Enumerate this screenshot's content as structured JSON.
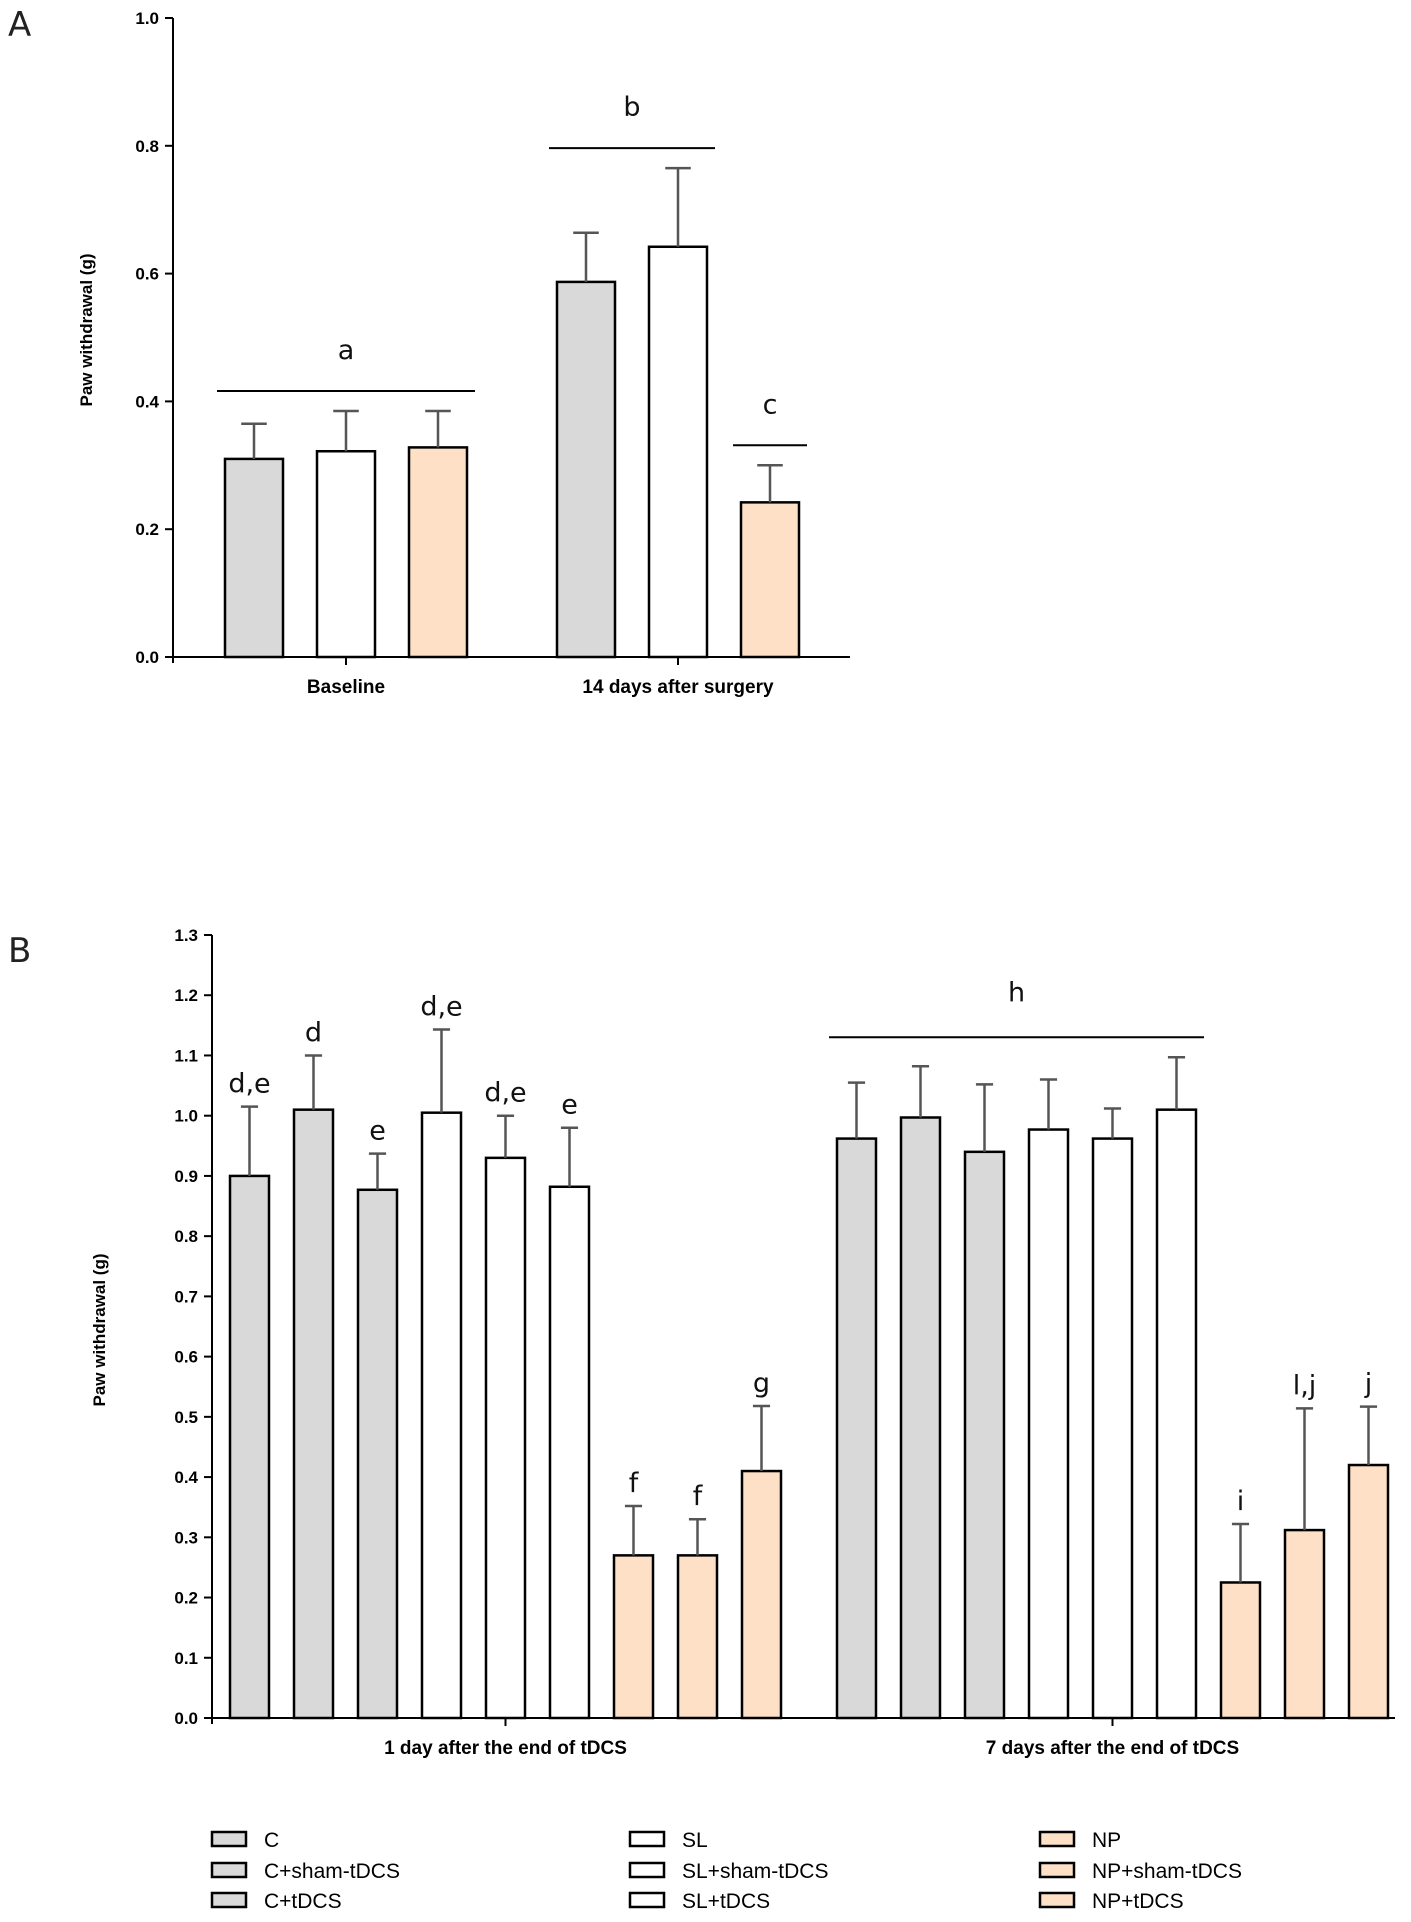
{
  "colors": {
    "C": "#d9d9d9",
    "SL": "#ffffff",
    "NP": "#fde0c5",
    "stroke": "#000000"
  },
  "chart_data": [
    {
      "panel": "A",
      "type": "bar",
      "ylabel": "Paw withdrawal (g)",
      "ylim": [
        0,
        1.0
      ],
      "yticks": [
        "0.0",
        "0.2",
        "0.4",
        "0.6",
        "0.8",
        "1.0"
      ],
      "groups": [
        {
          "label": "Baseline",
          "bars": [
            {
              "series": "C",
              "value": 0.31,
              "err": 0.055
            },
            {
              "series": "SL",
              "value": 0.322,
              "err": 0.063
            },
            {
              "series": "NP",
              "value": 0.328,
              "err": 0.057
            }
          ],
          "annotations": [
            {
              "text": "a",
              "span": [
                0,
                2
              ]
            }
          ]
        },
        {
          "label": "14 days after surgery",
          "bars": [
            {
              "series": "C",
              "value": 0.587,
              "err": 0.077
            },
            {
              "series": "SL",
              "value": 0.642,
              "err": 0.123
            },
            {
              "series": "NP",
              "value": 0.242,
              "err": 0.058
            }
          ],
          "annotations": [
            {
              "text": "b",
              "span": [
                0,
                1
              ]
            },
            {
              "text": "c",
              "span": [
                2,
                2
              ]
            }
          ]
        }
      ]
    },
    {
      "panel": "B",
      "type": "bar",
      "ylabel": "Paw withdrawal (g)",
      "ylim": [
        0,
        1.3
      ],
      "yticks": [
        "0.0",
        "0.1",
        "0.2",
        "0.3",
        "0.4",
        "0.5",
        "0.6",
        "0.7",
        "0.8",
        "0.9",
        "1.0",
        "1.1",
        "1.2",
        "1.3"
      ],
      "groups": [
        {
          "label": "1 day after the end of tDCS",
          "bars": [
            {
              "series": "C",
              "value": 0.9,
              "err": 0.115,
              "label": "d,e"
            },
            {
              "series": "C",
              "value": 1.01,
              "err": 0.09,
              "label": "d"
            },
            {
              "series": "C",
              "value": 0.877,
              "err": 0.06,
              "label": "e"
            },
            {
              "series": "SL",
              "value": 1.005,
              "err": 0.138,
              "label": "d,e"
            },
            {
              "series": "SL",
              "value": 0.93,
              "err": 0.07,
              "label": "d,e"
            },
            {
              "series": "SL",
              "value": 0.882,
              "err": 0.098,
              "label": "e"
            },
            {
              "series": "NP",
              "value": 0.27,
              "err": 0.082,
              "label": "f"
            },
            {
              "series": "NP",
              "value": 0.27,
              "err": 0.06,
              "label": "f"
            },
            {
              "series": "NP",
              "value": 0.41,
              "err": 0.108,
              "label": "g"
            }
          ],
          "annotations": []
        },
        {
          "label": "7 days after the end of tDCS",
          "bars": [
            {
              "series": "C",
              "value": 0.962,
              "err": 0.093
            },
            {
              "series": "C",
              "value": 0.997,
              "err": 0.085
            },
            {
              "series": "C",
              "value": 0.94,
              "err": 0.112
            },
            {
              "series": "SL",
              "value": 0.977,
              "err": 0.083
            },
            {
              "series": "SL",
              "value": 0.962,
              "err": 0.05
            },
            {
              "series": "SL",
              "value": 1.01,
              "err": 0.087
            },
            {
              "series": "NP",
              "value": 0.225,
              "err": 0.097,
              "label": "i"
            },
            {
              "series": "NP",
              "value": 0.312,
              "err": 0.202,
              "label": "l,j"
            },
            {
              "series": "NP",
              "value": 0.42,
              "err": 0.097,
              "label": "j"
            }
          ],
          "annotations": [
            {
              "text": "h",
              "span": [
                0,
                5
              ]
            }
          ]
        }
      ]
    }
  ],
  "legend": [
    {
      "label": "C",
      "series": "C"
    },
    {
      "label": "C+sham-tDCS",
      "series": "C"
    },
    {
      "label": "C+tDCS",
      "series": "C"
    },
    {
      "label": "SL",
      "series": "SL"
    },
    {
      "label": "SL+sham-tDCS",
      "series": "SL"
    },
    {
      "label": "SL+tDCS",
      "series": "SL"
    },
    {
      "label": "NP",
      "series": "NP"
    },
    {
      "label": "NP+sham-tDCS",
      "series": "NP"
    },
    {
      "label": "NP+tDCS",
      "series": "NP"
    }
  ]
}
